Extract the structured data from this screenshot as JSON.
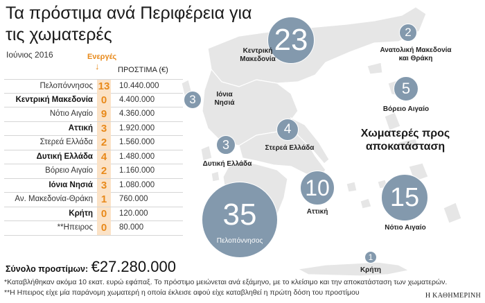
{
  "title": "Τα πρόστιμα ανά Περιφέρεια για τις χωματερές",
  "subtitle": "Ιούνιος 2016",
  "table": {
    "col_actions": "Ενεργές",
    "col_fines": "ΠΡΟΣΤΙΜΑ (€)",
    "rows": [
      {
        "region": "Πελοπόννησος",
        "count": "13",
        "amount": "10.440.000",
        "bold": false
      },
      {
        "region": "Κεντρική Μακεδονία",
        "count": "0",
        "amount": "4.400.000",
        "bold": true
      },
      {
        "region": "Νότιο Αιγαίο",
        "count": "9",
        "amount": "4.360.000",
        "bold": false
      },
      {
        "region": "Αττική",
        "count": "3",
        "amount": "1.920.000",
        "bold": true
      },
      {
        "region": "Στερεά Ελλάδα",
        "count": "2",
        "amount": "1.560.000",
        "bold": false
      },
      {
        "region": "Δυτική Ελλάδα",
        "count": "4",
        "amount": "1.480.000",
        "bold": true
      },
      {
        "region": "Βόρειο Αιγαίο",
        "count": "2",
        "amount": "1.160.000",
        "bold": false
      },
      {
        "region": "Ιόνια Νησιά",
        "count": "3",
        "amount": "1.080.000",
        "bold": true
      },
      {
        "region": "Αν. Μακεδονία-Θράκη",
        "count": "1",
        "amount": "760.000",
        "bold": false
      },
      {
        "region": "Κρήτη",
        "count": "0",
        "amount": "120.000",
        "bold": true
      },
      {
        "region": "**Ηπειρος",
        "count": "0",
        "amount": "80.000",
        "bold": false
      }
    ]
  },
  "total": {
    "label": "Σύνολο προστίμων:",
    "value": "€27.280.000"
  },
  "footnotes": [
    "*Καταβλήθηκαν ακόμα 10 εκατ. ευρώ εφάπαξ. Το πρόστιμο μειώνεται ανά εξάμηνο, με το κλείσιμο και την αποκατάσταση των χωματερών.",
    "**Η Ηπειρος είχε μία παράνομη χωματερή η οποία έκλεισε αφού είχε καταβληθεί η πρώτη δόση του προστίμου"
  ],
  "source": "Η ΚΑΘΗΜΕΡΙΝΗ",
  "map": {
    "heading": "Χωματερές προς αποκατάσταση",
    "bubble_color": "#8399ad",
    "land_color": "#e6e6e6",
    "bubbles": [
      {
        "id": "kentriki-makedonia",
        "value": "23",
        "label": "Κεντρική Μακεδονία"
      },
      {
        "id": "anatoliki-makedonia",
        "value": "2",
        "label": "Ανατολική Μακεδονία και Θράκη"
      },
      {
        "id": "voreio-aigaio",
        "value": "5",
        "label": "Βόρειο Αιγαίο"
      },
      {
        "id": "ionia-nisia",
        "value": "3",
        "label": "Ιόνια Νησιά"
      },
      {
        "id": "sterea-ellada",
        "value": "4",
        "label": "Στερεά Ελλάδα"
      },
      {
        "id": "dytiki-ellada",
        "value": "3",
        "label": "Δυτική Ελλάδα"
      },
      {
        "id": "attiki",
        "value": "10",
        "label": "Αττική"
      },
      {
        "id": "notio-aigaio",
        "value": "15",
        "label": "Νότιο Αιγαίο"
      },
      {
        "id": "peloponnisos",
        "value": "35",
        "label": "Πελοπόννησος"
      },
      {
        "id": "kriti",
        "value": "1",
        "label": "Κρήτη"
      }
    ]
  }
}
